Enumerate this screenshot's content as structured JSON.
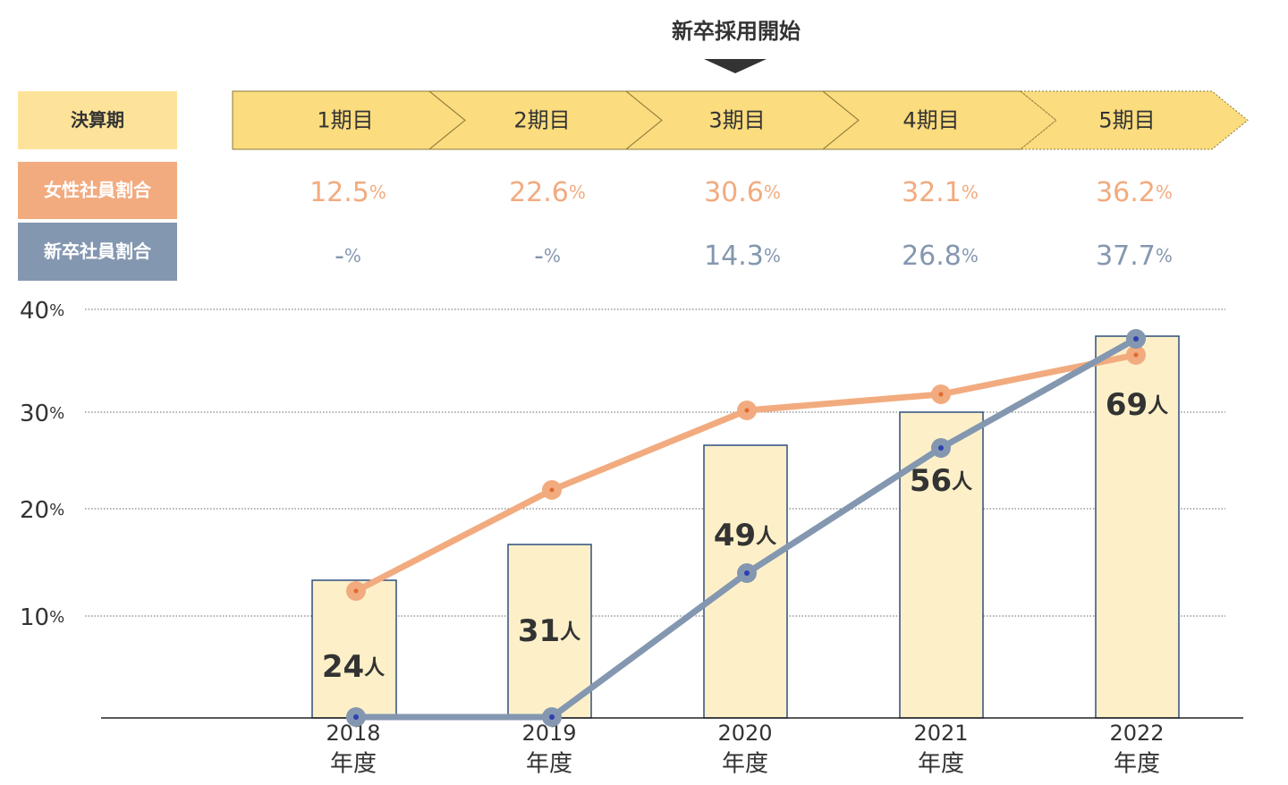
{
  "header": {
    "milestone_label": "新卒採用開始",
    "row_labels": {
      "period": "決算期",
      "female_ratio": "女性社員割合",
      "new_grad_ratio": "新卒社員割合"
    },
    "periods": [
      "1期目",
      "2期目",
      "3期目",
      "4期目",
      "5期目"
    ],
    "female_ratio_values": [
      {
        "num": "12.5",
        "unit": "%"
      },
      {
        "num": "22.6",
        "unit": "%"
      },
      {
        "num": "30.6",
        "unit": "%"
      },
      {
        "num": "32.1",
        "unit": "%"
      },
      {
        "num": "36.2",
        "unit": "%"
      }
    ],
    "new_grad_ratio_values": [
      {
        "num": "-",
        "unit": "%"
      },
      {
        "num": "-",
        "unit": "%"
      },
      {
        "num": "14.3",
        "unit": "%"
      },
      {
        "num": "26.8",
        "unit": "%"
      },
      {
        "num": "37.7",
        "unit": "%"
      }
    ]
  },
  "colors": {
    "period_fill": "#fbdc7e",
    "period_label_bg": "#fde39a",
    "female": "#f2ab7f",
    "female_point": "#f2ab7f",
    "female_dot": "#e06a2f",
    "new_grad": "#8497b0",
    "new_grad_dot": "#2f3fb0",
    "bar_fill": "#fdf0c9",
    "bar_stroke": "#2f4f7f",
    "grid": "#555555",
    "text_dark": "#333333"
  },
  "chart_data": {
    "type": "bar",
    "categories": [
      [
        "2018",
        "年度"
      ],
      [
        "2019",
        "年度"
      ],
      [
        "2020",
        "年度"
      ],
      [
        "2021",
        "年度"
      ],
      [
        "2022",
        "年度"
      ]
    ],
    "y_ticks": [
      {
        "value": 10,
        "num": "10",
        "unit": "%"
      },
      {
        "value": 20,
        "num": "20",
        "unit": "%"
      },
      {
        "value": 30,
        "num": "30",
        "unit": "%"
      },
      {
        "value": 40,
        "num": "40",
        "unit": "%"
      }
    ],
    "ylim": [
      0,
      40
    ],
    "grid": true,
    "series": [
      {
        "type": "bar",
        "values": [
          24,
          31,
          49,
          56,
          69
        ],
        "labels": [
          {
            "num": "24",
            "unit": "人"
          },
          {
            "num": "31",
            "unit": "人"
          },
          {
            "num": "49",
            "unit": "人"
          },
          {
            "num": "56",
            "unit": "人"
          },
          {
            "num": "69",
            "unit": "人"
          }
        ],
        "ylim": [
          0,
          75
        ]
      },
      {
        "type": "line",
        "key": "female",
        "values": [
          12.5,
          22.6,
          30.6,
          32.1,
          36.2
        ]
      },
      {
        "type": "line",
        "key": "new_grad",
        "values": [
          0,
          0,
          14.3,
          26.8,
          37.7
        ]
      }
    ]
  }
}
